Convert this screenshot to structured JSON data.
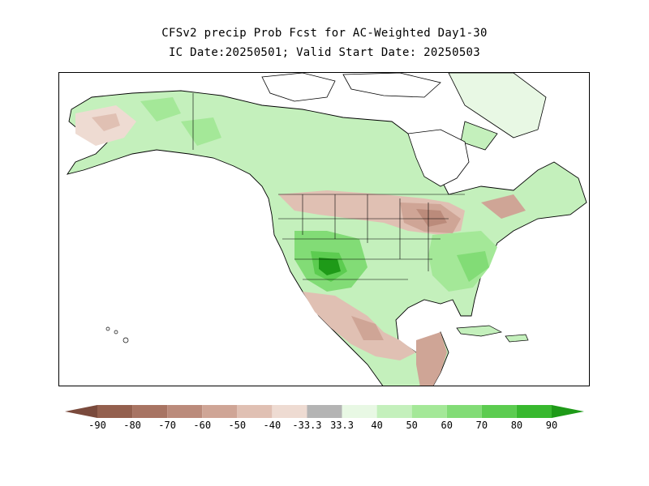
{
  "title_line1": "CFSv2 precip Prob Fcst for AC-Weighted Day1-30",
  "title_line2": "IC Date:20250501; Valid Start Date: 20250503",
  "legend": {
    "tick_labels": [
      "-90",
      "-80",
      "-70",
      "-60",
      "-50",
      "-40",
      "-33.3",
      "33.3",
      "40",
      "50",
      "60",
      "70",
      "80",
      "90"
    ],
    "colors": [
      "#7a4a3c",
      "#94604e",
      "#a87463",
      "#bb8b7b",
      "#cfa596",
      "#e0c0b3",
      "#eedbd2",
      "#b4b4b4",
      "#e8f8e4",
      "#c4f0bc",
      "#a4e898",
      "#82dc76",
      "#5ccc50",
      "#38b82e",
      "#1e9a18"
    ]
  },
  "map": {
    "region": "North America",
    "shading_legend": {
      "brown": "below-normal probability",
      "gray": "near-normal",
      "green": "above-normal probability"
    }
  }
}
